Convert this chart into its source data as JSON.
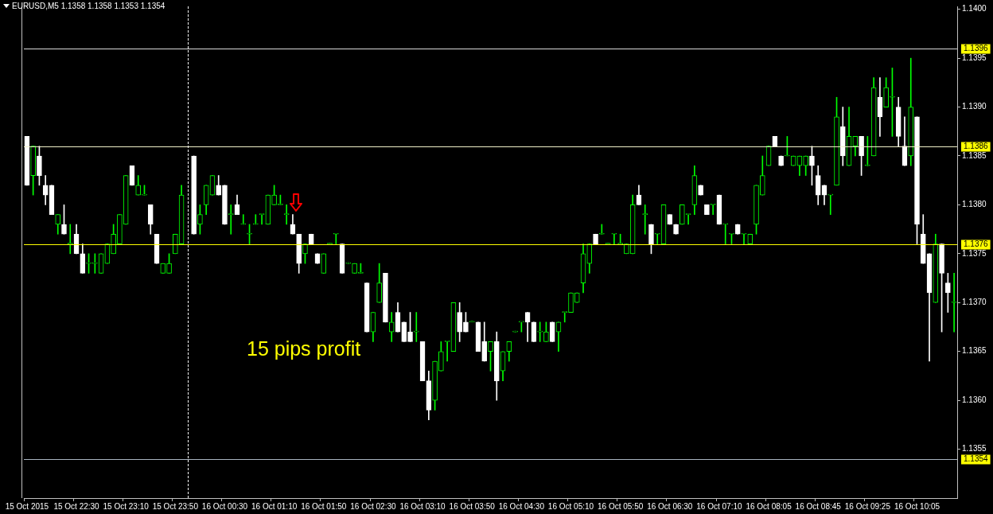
{
  "chart_data": {
    "type": "candlestick",
    "title": "EURUSD,M5  1.1358 1.1358 1.1353 1.1354",
    "categories": [
      "15 Oct 2015",
      null,
      null,
      null,
      null,
      null,
      null,
      null,
      "15 Oct 22:30",
      null,
      null,
      null,
      null,
      null,
      null,
      null,
      "15 Oct 23:10",
      null,
      null,
      null,
      null,
      null,
      null,
      null,
      "15 Oct 23:50",
      null,
      null,
      null,
      null,
      null,
      null,
      null,
      "16 Oct 00:30",
      null,
      null,
      null,
      null,
      null,
      null,
      null,
      "16 Oct 01:10",
      null,
      null,
      null,
      null,
      null,
      null,
      null,
      "16 Oct 01:50",
      null,
      null,
      null,
      null,
      null,
      null,
      null,
      "16 Oct 02:30",
      null,
      null,
      null,
      null,
      null,
      null,
      null,
      "16 Oct 03:10",
      null,
      null,
      null,
      null,
      null,
      null,
      null,
      "16 Oct 03:50",
      null,
      null,
      null,
      null,
      null,
      null,
      null,
      "16 Oct 04:30",
      null,
      null,
      null,
      null,
      null,
      null,
      null,
      "16 Oct 05:10",
      null,
      null,
      null,
      null,
      null,
      null,
      null,
      "16 Oct 05:50",
      null,
      null,
      null,
      null,
      null,
      null,
      null,
      "16 Oct 06:30",
      null,
      null,
      null,
      null,
      null,
      null,
      null,
      "16 Oct 07:10",
      null,
      null,
      null,
      null,
      null,
      null,
      null,
      "16 Oct 08:05",
      null,
      null,
      null,
      null,
      null,
      null,
      null,
      "16 Oct 08:45",
      null,
      null,
      null,
      null,
      null,
      null,
      null,
      "16 Oct 09:25",
      null,
      null,
      null,
      null,
      null,
      null,
      null,
      "16 Oct 10:05",
      null,
      null,
      null,
      null,
      null,
      null
    ],
    "ohlc": [
      [
        1.1387,
        1.1387,
        1.1382,
        1.1382
      ],
      [
        1.1383,
        1.1386,
        1.1381,
        1.1386
      ],
      [
        1.1385,
        1.1386,
        1.1382,
        1.1383
      ],
      [
        1.1382,
        1.1383,
        1.138,
        1.1381
      ],
      [
        1.1382,
        1.1382,
        1.1379,
        1.1379
      ],
      [
        1.1378,
        1.1379,
        1.1377,
        1.1379
      ],
      [
        1.1378,
        1.138,
        1.1377,
        1.1377
      ],
      [
        1.1376,
        1.1378,
        1.1375,
        1.1376
      ],
      [
        1.1377,
        1.1378,
        1.1375,
        1.1375
      ],
      [
        1.1375,
        1.1376,
        1.1373,
        1.1373
      ],
      [
        1.1374,
        1.1375,
        1.1373,
        1.1374
      ],
      [
        1.1374,
        1.1375,
        1.1373,
        1.1374
      ],
      [
        1.1373,
        1.1375,
        1.1373,
        1.1375
      ],
      [
        1.1374,
        1.1376,
        1.1374,
        1.1376
      ],
      [
        1.1375,
        1.1378,
        1.1375,
        1.1377
      ],
      [
        1.1376,
        1.1379,
        1.1376,
        1.1379
      ],
      [
        1.1378,
        1.1383,
        1.1378,
        1.1383
      ],
      [
        1.1384,
        1.1384,
        1.1382,
        1.1382
      ],
      [
        1.1381,
        1.1383,
        1.1381,
        1.1382
      ],
      [
        1.1381,
        1.1382,
        1.1381,
        1.1381
      ],
      [
        1.138,
        1.138,
        1.1377,
        1.1378
      ],
      [
        1.1377,
        1.1377,
        1.1374,
        1.1374
      ],
      [
        1.1373,
        1.1374,
        1.1373,
        1.1374
      ],
      [
        1.1373,
        1.1375,
        1.1373,
        1.1374
      ],
      [
        1.1375,
        1.1377,
        1.1375,
        1.1377
      ],
      [
        1.1376,
        1.1382,
        1.1376,
        1.1381
      ],
      null,
      [
        1.1385,
        1.1385,
        1.1377,
        1.1377
      ],
      [
        1.1378,
        1.138,
        1.1377,
        1.1379
      ],
      [
        1.138,
        1.1382,
        1.1379,
        1.1382
      ],
      [
        1.1381,
        1.1383,
        1.1381,
        1.1383
      ],
      [
        1.1382,
        1.1383,
        1.1381,
        1.1381
      ],
      [
        1.1382,
        1.1382,
        1.1378,
        1.1378
      ],
      [
        1.1379,
        1.138,
        1.1377,
        1.1379
      ],
      [
        1.138,
        1.1381,
        1.1379,
        1.1379
      ],
      [
        1.1378,
        1.1379,
        1.1378,
        1.1378
      ],
      [
        1.1377,
        1.1378,
        1.1376,
        1.1377
      ],
      [
        1.1378,
        1.1379,
        1.1378,
        1.1378
      ],
      [
        1.1379,
        1.1379,
        1.1378,
        1.1379
      ],
      [
        1.1378,
        1.1381,
        1.1378,
        1.1381
      ],
      [
        1.138,
        1.1382,
        1.138,
        1.1381
      ],
      [
        1.138,
        1.1381,
        1.138,
        1.138
      ],
      [
        1.1379,
        1.138,
        1.1378,
        1.1379
      ],
      [
        1.1378,
        1.1379,
        1.1377,
        1.1377
      ],
      [
        1.1377,
        1.1377,
        1.1373,
        1.1374
      ],
      [
        1.1375,
        1.1376,
        1.1374,
        1.1376
      ],
      [
        1.1377,
        1.1377,
        1.1376,
        1.1376
      ],
      [
        1.1375,
        1.1375,
        1.1374,
        1.1374
      ],
      [
        1.1373,
        1.1375,
        1.1373,
        1.1375
      ],
      [
        1.1376,
        1.1376,
        1.1376,
        1.1376
      ],
      [
        1.1377,
        1.1377,
        1.1376,
        1.1377
      ],
      [
        1.1376,
        1.1376,
        1.1373,
        1.1373
      ],
      [
        1.1374,
        1.1374,
        1.1374,
        1.1374
      ],
      [
        1.1373,
        1.1374,
        1.1373,
        1.1374
      ],
      [
        1.1373,
        1.1374,
        1.1373,
        1.1373
      ],
      [
        1.1372,
        1.1372,
        1.1367,
        1.1367
      ],
      [
        1.1367,
        1.1369,
        1.1366,
        1.1369
      ],
      [
        1.137,
        1.1374,
        1.137,
        1.1372
      ],
      [
        1.1373,
        1.1373,
        1.1368,
        1.1368
      ],
      [
        1.1367,
        1.1369,
        1.1366,
        1.1368
      ],
      [
        1.1369,
        1.137,
        1.1367,
        1.1367
      ],
      [
        1.1368,
        1.1368,
        1.1366,
        1.1366
      ],
      [
        1.1367,
        1.1369,
        1.1366,
        1.1366
      ],
      [
        1.1367,
        1.1369,
        1.1366,
        1.1367
      ],
      [
        1.1366,
        1.1366,
        1.1362,
        1.1362
      ],
      [
        1.1362,
        1.1363,
        1.1358,
        1.1359
      ],
      [
        1.136,
        1.1364,
        1.1359,
        1.1364
      ],
      [
        1.1363,
        1.1366,
        1.1363,
        1.1365
      ],
      [
        1.1366,
        1.1366,
        1.1364,
        1.1366
      ],
      [
        1.1365,
        1.137,
        1.1365,
        1.137
      ],
      [
        1.1369,
        1.137,
        1.1366,
        1.1367
      ],
      [
        1.1368,
        1.1369,
        1.1367,
        1.1367
      ],
      [
        1.1368,
        1.1368,
        1.1368,
        1.1368
      ],
      [
        1.1368,
        1.1368,
        1.1365,
        1.1365
      ],
      [
        1.1366,
        1.1368,
        1.1364,
        1.1364
      ],
      [
        1.1365,
        1.1366,
        1.1363,
        1.1366
      ],
      [
        1.1366,
        1.1367,
        1.136,
        1.1362
      ],
      [
        1.1363,
        1.1365,
        1.1362,
        1.1365
      ],
      [
        1.1365,
        1.1366,
        1.1364,
        1.1366
      ],
      [
        1.1367,
        1.1367,
        1.1367,
        1.1367
      ],
      [
        1.1368,
        1.1368,
        1.1367,
        1.1368
      ],
      [
        1.1369,
        1.1369,
        1.1366,
        1.1368
      ],
      [
        1.1368,
        1.1368,
        1.1366,
        1.1366
      ],
      [
        1.1367,
        1.1368,
        1.1366,
        1.1367
      ],
      [
        1.1366,
        1.1368,
        1.1366,
        1.1367
      ],
      [
        1.1368,
        1.1368,
        1.1366,
        1.1366
      ],
      [
        1.1367,
        1.1368,
        1.1365,
        1.1368
      ],
      [
        1.1369,
        1.1369,
        1.1368,
        1.1369
      ],
      [
        1.1369,
        1.1371,
        1.1369,
        1.1371
      ],
      [
        1.137,
        1.1371,
        1.137,
        1.1371
      ],
      [
        1.1372,
        1.1376,
        1.1371,
        1.1375
      ],
      [
        1.1374,
        1.1376,
        1.1373,
        1.1376
      ],
      [
        1.1377,
        1.1377,
        1.1376,
        1.1376
      ],
      [
        1.1377,
        1.1378,
        1.1377,
        1.1377
      ],
      [
        1.1376,
        1.1376,
        1.1376,
        1.1376
      ],
      [
        1.1377,
        1.1377,
        1.1376,
        1.1377
      ],
      [
        1.1376,
        1.1377,
        1.1376,
        1.1376
      ],
      [
        1.1375,
        1.1376,
        1.1375,
        1.1376
      ],
      [
        1.1375,
        1.1381,
        1.1375,
        1.138
      ],
      [
        1.1381,
        1.1382,
        1.138,
        1.138
      ],
      [
        1.1379,
        1.138,
        1.1377,
        1.1379
      ],
      [
        1.1378,
        1.1378,
        1.1375,
        1.1376
      ],
      [
        1.1377,
        1.1377,
        1.1376,
        1.1377
      ],
      [
        1.1376,
        1.138,
        1.1376,
        1.138
      ],
      [
        1.1379,
        1.1379,
        1.1378,
        1.1378
      ],
      [
        1.1378,
        1.1378,
        1.1377,
        1.1377
      ],
      [
        1.1378,
        1.138,
        1.1378,
        1.138
      ],
      [
        1.1379,
        1.1379,
        1.1378,
        1.1379
      ],
      [
        1.138,
        1.1384,
        1.1379,
        1.1383
      ],
      [
        1.1382,
        1.1382,
        1.1381,
        1.1381
      ],
      [
        1.138,
        1.138,
        1.1379,
        1.1379
      ],
      [
        1.138,
        1.138,
        1.1379,
        1.138
      ],
      [
        1.1381,
        1.1381,
        1.1378,
        1.1378
      ],
      [
        1.1378,
        1.1378,
        1.1376,
        1.1378
      ],
      [
        1.1377,
        1.1377,
        1.1376,
        1.1377
      ],
      [
        1.1378,
        1.1378,
        1.1377,
        1.1377
      ],
      [
        1.1377,
        1.1377,
        1.1376,
        1.1377
      ],
      [
        1.1376,
        1.1377,
        1.1376,
        1.1377
      ],
      [
        1.1378,
        1.1382,
        1.1377,
        1.1382
      ],
      [
        1.1381,
        1.1385,
        1.1381,
        1.1383
      ],
      [
        1.1384,
        1.1386,
        1.1384,
        1.1386
      ],
      [
        1.1387,
        1.1387,
        1.1386,
        1.1386
      ],
      [
        1.1385,
        1.1385,
        1.1384,
        1.1384
      ],
      [
        1.1385,
        1.1387,
        1.1385,
        1.1385
      ],
      [
        1.1384,
        1.1385,
        1.1384,
        1.1385
      ],
      [
        1.1384,
        1.1385,
        1.1383,
        1.1385
      ],
      [
        1.1384,
        1.1385,
        1.1383,
        1.1385
      ],
      [
        1.1385,
        1.1386,
        1.1382,
        1.1384
      ],
      [
        1.1383,
        1.1384,
        1.138,
        1.1381
      ],
      [
        1.1382,
        1.1382,
        1.138,
        1.1381
      ],
      [
        1.1381,
        1.1381,
        1.1379,
        1.1381
      ],
      [
        1.1382,
        1.1391,
        1.1382,
        1.1389
      ],
      [
        1.1388,
        1.139,
        1.1384,
        1.1385
      ],
      [
        1.1384,
        1.139,
        1.1384,
        1.1387
      ],
      [
        1.1386,
        1.1387,
        1.1385,
        1.1387
      ],
      [
        1.1387,
        1.1387,
        1.1383,
        1.1385
      ],
      [
        1.1384,
        1.1387,
        1.1384,
        1.1384
      ],
      [
        1.1385,
        1.1393,
        1.1385,
        1.1392
      ],
      [
        1.1391,
        1.1393,
        1.1387,
        1.1389
      ],
      [
        1.139,
        1.1393,
        1.139,
        1.1392
      ],
      [
        1.1391,
        1.1394,
        1.1387,
        1.1391
      ],
      [
        1.139,
        1.1391,
        1.1386,
        1.1387
      ],
      [
        1.1386,
        1.1389,
        1.1384,
        1.1384
      ],
      [
        1.1385,
        1.1395,
        1.1384,
        1.139
      ],
      [
        1.1389,
        1.1389,
        1.1376,
        1.1378
      ],
      [
        1.1377,
        1.1379,
        1.1374,
        1.1374
      ],
      [
        1.1375,
        1.1375,
        1.1364,
        1.1371
      ],
      [
        1.137,
        1.1377,
        1.137,
        1.1376
      ],
      [
        1.1376,
        1.1376,
        1.1367,
        1.1373
      ],
      [
        1.1372,
        1.1373,
        1.1369,
        1.1371
      ],
      [
        1.137,
        1.1373,
        1.1367,
        1.137
      ]
    ],
    "colors": [
      "#ffffff",
      "#00ff00",
      "#ffffff",
      "#ffffff",
      "#ffffff",
      "#00ff00",
      "#ffffff",
      "#00ff00",
      "#ffffff",
      "#ffffff",
      "#00ff00",
      "#00ff00",
      "#00ff00",
      "#00ff00",
      "#00ff00",
      "#00ff00",
      "#00ff00",
      "#ffffff",
      "#00ff00",
      "#00ff00",
      "#ffffff",
      "#ffffff",
      "#00ff00",
      "#00ff00",
      "#00ff00",
      "#00ff00",
      null,
      "#ffffff",
      "#00ff00",
      "#00ff00",
      "#00ff00",
      "#ffffff",
      "#ffffff",
      "#00ff00",
      "#ffffff",
      "#00ff00",
      "#00ff00",
      "#00ff00",
      "#00ff00",
      "#00ff00",
      "#00ff00",
      "#00ff00",
      "#00ff00",
      "#ffffff",
      "#ffffff",
      "#00ff00",
      "#ffffff",
      "#ffffff",
      "#00ff00",
      "#00ff00",
      "#00ff00",
      "#ffffff",
      "#00ff00",
      "#00ff00",
      "#00ff00",
      "#ffffff",
      "#00ff00",
      "#00ff00",
      "#ffffff",
      "#00ff00",
      "#ffffff",
      "#ffffff",
      "#ffffff",
      "#00ff00",
      "#ffffff",
      "#ffffff",
      "#00ff00",
      "#00ff00",
      "#00ff00",
      "#00ff00",
      "#ffffff",
      "#ffffff",
      "#00ff00",
      "#ffffff",
      "#ffffff",
      "#00ff00",
      "#ffffff",
      "#00ff00",
      "#00ff00",
      "#00ff00",
      "#00ff00",
      "#ffffff",
      "#ffffff",
      "#00ff00",
      "#00ff00",
      "#ffffff",
      "#00ff00",
      "#00ff00",
      "#00ff00",
      "#00ff00",
      "#00ff00",
      "#00ff00",
      "#ffffff",
      "#00ff00",
      "#00ff00",
      "#00ff00",
      "#00ff00",
      "#00ff00",
      "#00ff00",
      "#ffffff",
      "#00ff00",
      "#ffffff",
      "#00ff00",
      "#00ff00",
      "#ffffff",
      "#ffffff",
      "#00ff00",
      "#00ff00",
      "#00ff00",
      "#ffffff",
      "#ffffff",
      "#00ff00",
      "#ffffff",
      "#00ff00",
      "#00ff00",
      "#ffffff",
      "#00ff00",
      "#00ff00",
      "#00ff00",
      "#00ff00",
      "#00ff00",
      "#ffffff",
      "#ffffff",
      "#00ff00",
      "#00ff00",
      "#00ff00",
      "#00ff00",
      "#ffffff",
      "#ffffff",
      "#ffffff",
      "#00ff00",
      "#00ff00",
      "#ffffff",
      "#00ff00",
      "#00ff00",
      "#ffffff",
      "#00ff00",
      "#00ff00",
      "#ffffff",
      "#00ff00",
      "#00ff00",
      "#ffffff",
      "#ffffff",
      "#00ff00",
      "#ffffff",
      "#ffffff",
      "#ffffff",
      "#00ff00",
      "#ffffff",
      "#ffffff",
      "#00ff00"
    ],
    "ylim": [
      1.135,
      1.14003
    ],
    "yticks": [
      {
        "value": 1.1355,
        "label": "1.1355"
      },
      {
        "value": 1.136,
        "label": "1.1360"
      },
      {
        "value": 1.1365,
        "label": "1.1365"
      },
      {
        "value": 1.137,
        "label": "1.1370"
      },
      {
        "value": 1.1375,
        "label": "1.1375"
      },
      {
        "value": 1.138,
        "label": "1.1380"
      },
      {
        "value": 1.1385,
        "label": "1.1385"
      },
      {
        "value": 1.139,
        "label": "1.1390"
      },
      {
        "value": 1.1395,
        "label": "1.1395"
      },
      {
        "value": 1.14,
        "label": "1.1400"
      }
    ],
    "ref_lines": [
      {
        "axis": "y",
        "value": 1.1396,
        "label": "1.1396",
        "color": "#d8d8d8"
      },
      {
        "axis": "y",
        "value": 1.1386,
        "label": "1.1386",
        "color": "#f0f0c8"
      },
      {
        "axis": "y",
        "value": 1.1376,
        "label": "1.1376",
        "color": "#ffff00"
      },
      {
        "axis": "y",
        "value": 1.1354,
        "label": "1.1354",
        "color": "#a8b4c0"
      }
    ],
    "annotations": [
      "15 pips profit"
    ]
  }
}
